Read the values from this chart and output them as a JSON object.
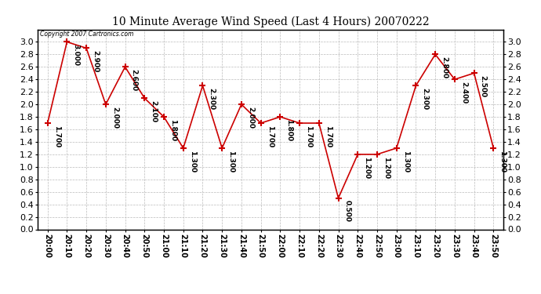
{
  "title": "10 Minute Average Wind Speed (Last 4 Hours) 20070222",
  "copyright_text": "Copyright 2007 Cartronics.com",
  "x_labels": [
    "20:00",
    "20:10",
    "20:20",
    "20:30",
    "20:40",
    "20:50",
    "21:00",
    "21:10",
    "21:20",
    "21:30",
    "21:40",
    "21:50",
    "22:00",
    "22:10",
    "22:20",
    "22:30",
    "22:40",
    "22:50",
    "23:00",
    "23:10",
    "23:20",
    "23:30",
    "23:40",
    "23:50"
  ],
  "y_values": [
    1.7,
    3.0,
    2.9,
    2.0,
    2.6,
    2.1,
    1.8,
    1.3,
    2.3,
    1.3,
    2.0,
    1.7,
    1.8,
    1.7,
    1.7,
    0.5,
    1.2,
    1.2,
    1.3,
    2.3,
    2.8,
    2.4,
    2.5,
    1.3
  ],
  "point_labels": [
    "1.700",
    "3.000",
    "2.900",
    "2.000",
    "2.600",
    "2.100",
    "1.800",
    "1.300",
    "2.300",
    "1.300",
    "2.000",
    "1.700",
    "1.800",
    "1.700",
    "1.700",
    "0.500",
    "1.200",
    "1.200",
    "1.300",
    "2.300",
    "2.800",
    "2.400",
    "2.500",
    "1.300"
  ],
  "line_color": "#cc0000",
  "marker_color": "#cc0000",
  "bg_color": "#ffffff",
  "grid_color": "#bbbbbb",
  "ylim": [
    0.0,
    3.2
  ],
  "yticks": [
    0.0,
    0.2,
    0.4,
    0.6,
    0.8,
    1.0,
    1.2,
    1.4,
    1.6,
    1.8,
    2.0,
    2.2,
    2.4,
    2.6,
    2.8,
    3.0
  ]
}
